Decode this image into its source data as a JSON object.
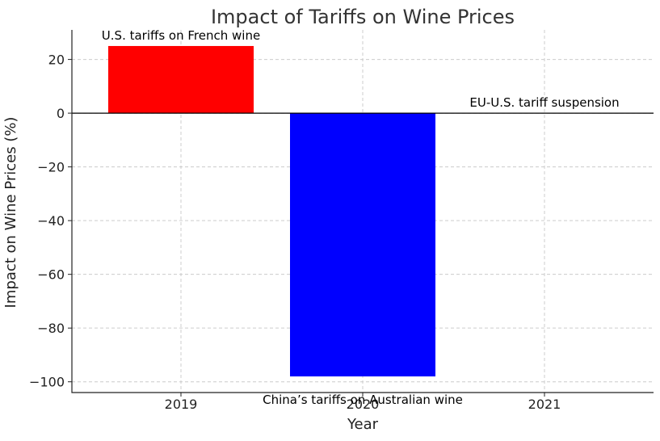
{
  "chart_data": {
    "type": "bar",
    "title": "Impact of Tariffs on Wine Prices",
    "xlabel": "Year",
    "ylabel": "Impact on Wine Prices (%)",
    "categories": [
      "2019",
      "2020",
      "2021"
    ],
    "values": [
      25,
      -98,
      0
    ],
    "colors": [
      "#ff0000",
      "#0000ff",
      "#ffffff"
    ],
    "ylim": [
      -104,
      31
    ],
    "yticks": [
      20,
      0,
      -20,
      -40,
      -60,
      -80,
      -100
    ],
    "ytick_labels": [
      "20",
      "0",
      "−20",
      "−40",
      "−60",
      "−80",
      "−100"
    ],
    "annotations": [
      {
        "category": "2019",
        "value": 25,
        "text": "U.S. tariffs on French wine"
      },
      {
        "category": "2020",
        "value": -98,
        "text": "China’s tariffs on Australian wine"
      },
      {
        "category": "2021",
        "value": 0,
        "text": "EU-U.S. tariff suspension"
      }
    ],
    "grid": true
  }
}
